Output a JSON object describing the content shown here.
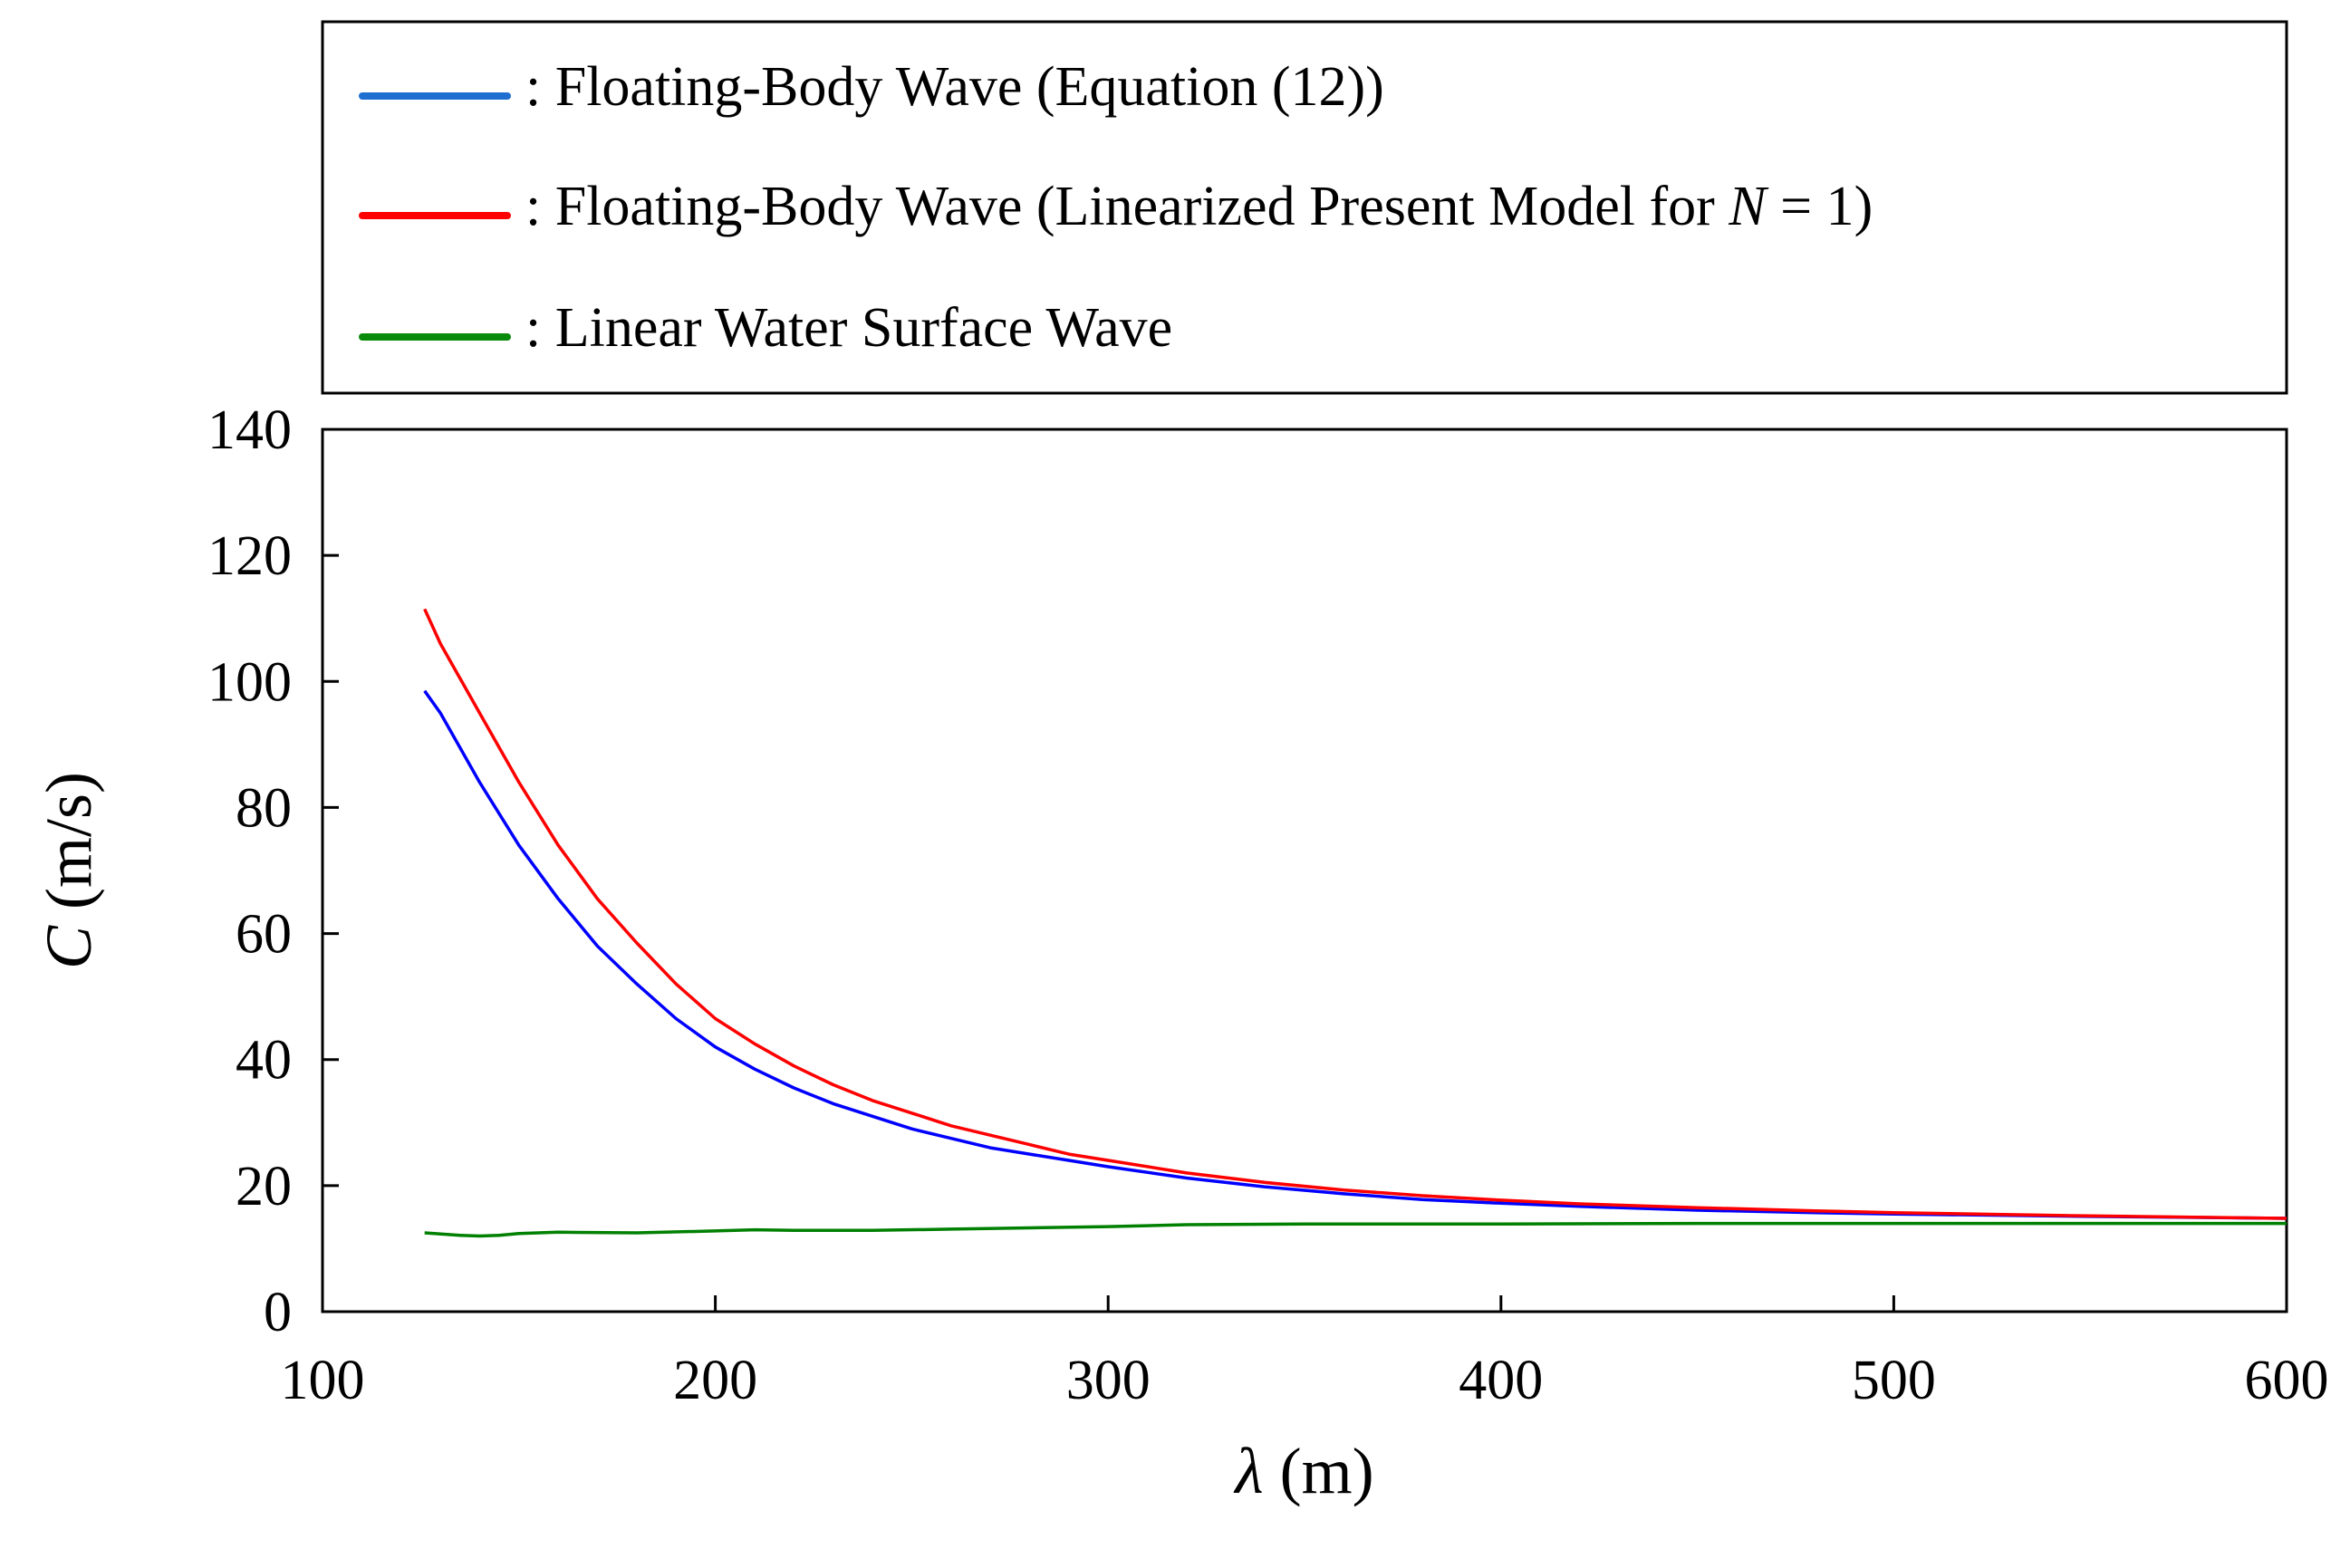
{
  "chart_data": {
    "type": "line",
    "title": "",
    "xlabel": {
      "symbol": "λ",
      "unit": " (m)"
    },
    "ylabel": {
      "symbol": "C",
      "unit": " (m/s)"
    },
    "xlim": [
      100,
      600
    ],
    "ylim": [
      0,
      140
    ],
    "xticks": [
      100,
      200,
      300,
      400,
      500,
      600
    ],
    "yticks": [
      0,
      20,
      40,
      60,
      80,
      100,
      120,
      140
    ],
    "grid": false,
    "legend_position": "top",
    "series": [
      {
        "name": "Floating-Body Wave (Equation (12))",
        "legend_prefix": ": Floating-Body Wave (Equation (12))",
        "color": "#0000ff",
        "legend_color": "#1f6fd1",
        "x": [
          126,
          130,
          140,
          150,
          160,
          170,
          180,
          190,
          200,
          210,
          220,
          230,
          240,
          250,
          260,
          270,
          280,
          290,
          300,
          320,
          340,
          360,
          380,
          400,
          420,
          450,
          480,
          500,
          550,
          600
        ],
        "y": [
          98.5,
          95.0,
          84.0,
          74.0,
          65.5,
          58.0,
          52.0,
          46.5,
          42.0,
          38.5,
          35.5,
          33.0,
          31.0,
          29.0,
          27.5,
          26.0,
          25.0,
          24.0,
          23.0,
          21.2,
          19.8,
          18.7,
          17.8,
          17.2,
          16.7,
          16.1,
          15.7,
          15.5,
          15.1,
          14.8
        ]
      },
      {
        "name": "Floating-Body Wave (Linearized Present Model for N = 1)",
        "legend_prefix": ": Floating-Body Wave (Linearized Present Model for ",
        "legend_italic": "N",
        "legend_suffix": " = 1)",
        "color": "#ff0000",
        "legend_color": "#ff0000",
        "x": [
          126,
          130,
          140,
          150,
          160,
          170,
          180,
          190,
          200,
          210,
          220,
          230,
          240,
          250,
          260,
          270,
          280,
          290,
          300,
          320,
          340,
          360,
          380,
          400,
          420,
          450,
          480,
          500,
          550,
          600
        ],
        "y": [
          111.5,
          106.0,
          95.0,
          84.0,
          74.0,
          65.5,
          58.5,
          52.0,
          46.5,
          42.5,
          39.0,
          36.0,
          33.5,
          31.5,
          29.5,
          28.0,
          26.5,
          25.0,
          24.0,
          22.0,
          20.5,
          19.3,
          18.4,
          17.7,
          17.1,
          16.5,
          16.0,
          15.7,
          15.2,
          14.8
        ]
      },
      {
        "name": "Linear Water Surface Wave",
        "legend_prefix": ": Linear Water Surface Wave",
        "color": "#008000",
        "legend_color": "#0a8a0a",
        "x": [
          126,
          135,
          140,
          145,
          150,
          160,
          180,
          200,
          210,
          220,
          240,
          260,
          280,
          300,
          320,
          350,
          400,
          450,
          500,
          550,
          600
        ],
        "y": [
          12.5,
          12.1,
          12.0,
          12.1,
          12.4,
          12.6,
          12.5,
          12.8,
          13.0,
          12.9,
          12.9,
          13.1,
          13.3,
          13.5,
          13.8,
          13.9,
          13.9,
          14.0,
          14.0,
          14.0,
          14.0
        ]
      }
    ]
  }
}
